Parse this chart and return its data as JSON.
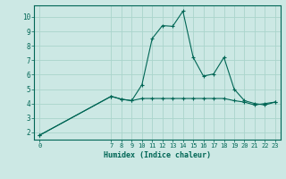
{
  "xlabel": "Humidex (Indice chaleur)",
  "ylabel": "",
  "bg_color": "#cce8e4",
  "grid_color": "#aad4cc",
  "line_color": "#006655",
  "xlim": [
    -0.5,
    23.5
  ],
  "ylim": [
    1.5,
    10.8
  ],
  "x_ticks": [
    0,
    7,
    8,
    9,
    10,
    11,
    12,
    13,
    14,
    15,
    16,
    17,
    18,
    19,
    20,
    21,
    22,
    23
  ],
  "y_ticks": [
    2,
    3,
    4,
    5,
    6,
    7,
    8,
    9,
    10
  ],
  "line1_x": [
    0,
    7,
    8,
    9,
    10,
    11,
    12,
    13,
    14,
    15,
    16,
    17,
    18,
    19,
    20,
    21,
    22,
    23
  ],
  "line1_y": [
    1.8,
    4.5,
    4.3,
    4.2,
    4.35,
    4.35,
    4.35,
    4.35,
    4.35,
    4.35,
    4.35,
    4.35,
    4.35,
    4.2,
    4.1,
    3.9,
    4.0,
    4.1
  ],
  "line2_x": [
    0,
    7,
    8,
    9,
    10,
    11,
    12,
    13,
    14,
    15,
    16,
    17,
    18,
    19,
    20,
    21,
    22,
    23
  ],
  "line2_y": [
    1.8,
    4.5,
    4.3,
    4.2,
    5.3,
    8.5,
    9.4,
    9.35,
    10.4,
    7.2,
    5.9,
    6.05,
    7.2,
    5.0,
    4.2,
    4.0,
    3.9,
    4.1
  ]
}
